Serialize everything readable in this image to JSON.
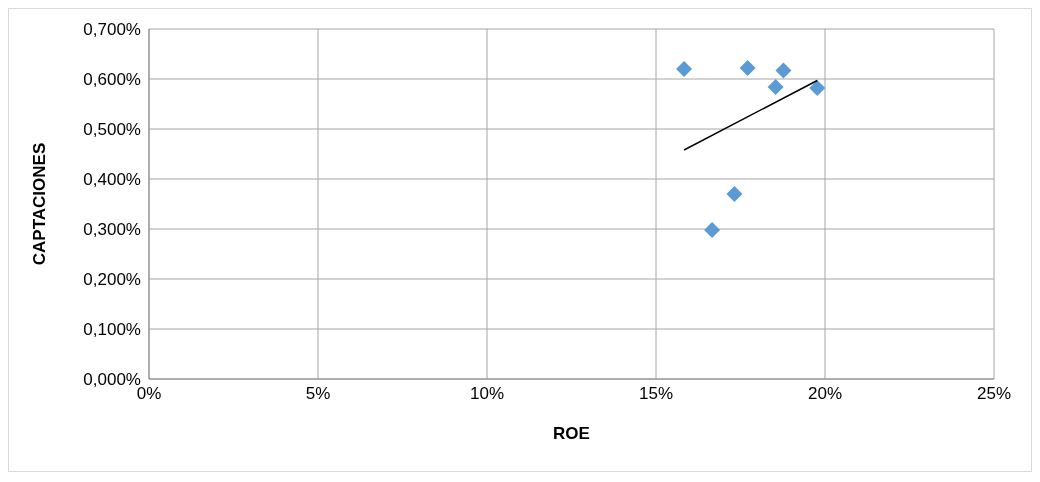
{
  "chart_data": {
    "type": "scatter",
    "xlabel": "ROE",
    "ylabel": "CAPTACIONES",
    "marker": "diamond",
    "grid": true,
    "legend": false,
    "xlim": [
      0,
      25
    ],
    "xticks": [
      {
        "value": 0,
        "label": "0%"
      },
      {
        "value": 5,
        "label": "5%"
      },
      {
        "value": 10,
        "label": "10%"
      },
      {
        "value": 15,
        "label": "15%"
      },
      {
        "value": 20,
        "label": "20%"
      },
      {
        "value": 25,
        "label": "25%"
      }
    ],
    "ylim": [
      0,
      0.7
    ],
    "yticks": [
      {
        "value": 0,
        "label": "0,000%"
      },
      {
        "value": 0.1,
        "label": "0,100%"
      },
      {
        "value": 0.2,
        "label": "0,200%"
      },
      {
        "value": 0.3,
        "label": "0,300%"
      },
      {
        "value": 0.4,
        "label": "0,400%"
      },
      {
        "value": 0.5,
        "label": "0,500%"
      },
      {
        "value": 0.6,
        "label": "0,600%"
      },
      {
        "value": 0.7,
        "label": "0,700%"
      }
    ],
    "series": [
      {
        "color": "#5b9bd5",
        "x": [
          15.83,
          17.71,
          18.77,
          18.54,
          19.77,
          17.32,
          16.66
        ],
        "values": [
          0.62,
          0.622,
          0.617,
          0.584,
          0.582,
          0.37,
          0.298
        ]
      },
      {
        "type": "line",
        "color": "#000000",
        "marker": "none",
        "x": [
          15.83,
          19.77
        ],
        "values": [
          0.458,
          0.597
        ]
      }
    ]
  }
}
